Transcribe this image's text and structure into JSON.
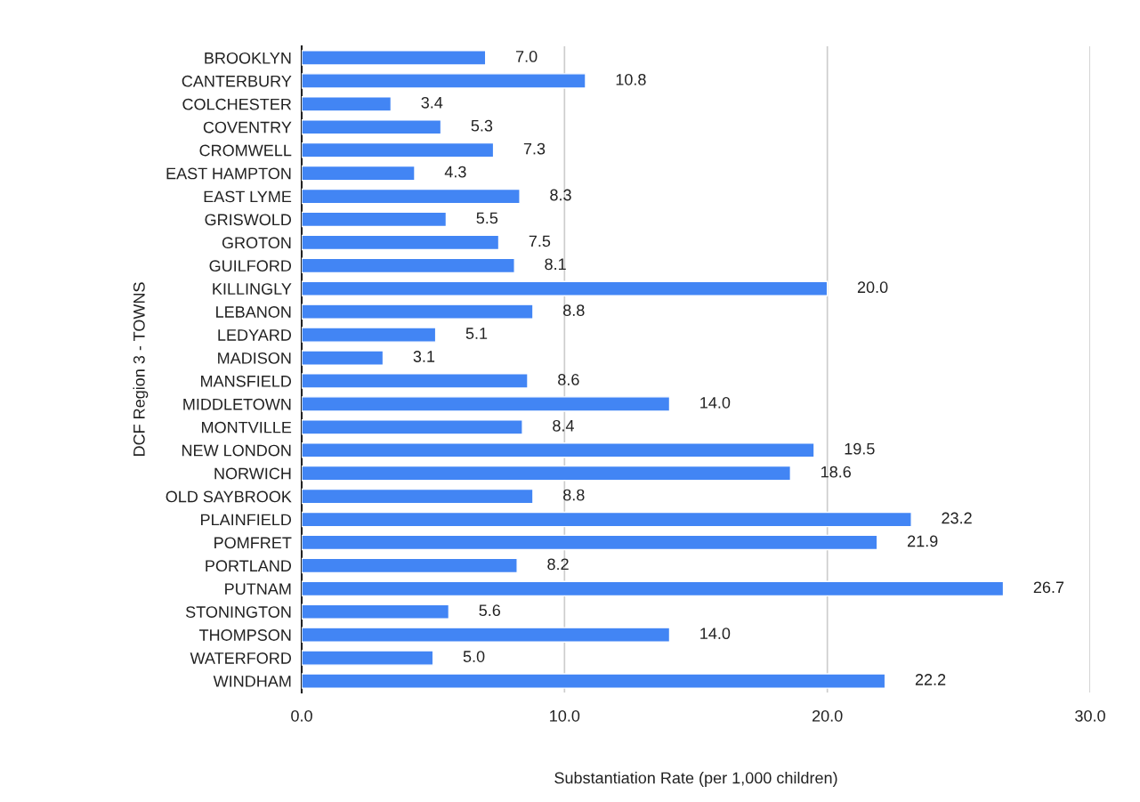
{
  "chart_data": {
    "type": "bar",
    "orientation": "horizontal",
    "ylabel": "DCF Region 3 - TOWNS",
    "xlabel": "Substantiation Rate (per 1,000 children)",
    "categories": [
      "BROOKLYN",
      "CANTERBURY",
      "COLCHESTER",
      "COVENTRY",
      "CROMWELL",
      "EAST HAMPTON",
      "EAST LYME",
      "GRISWOLD",
      "GROTON",
      "GUILFORD",
      "KILLINGLY",
      "LEBANON",
      "LEDYARD",
      "MADISON",
      "MANSFIELD",
      "MIDDLETOWN",
      "MONTVILLE",
      "NEW LONDON",
      "NORWICH",
      "OLD SAYBROOK",
      "PLAINFIELD",
      "POMFRET",
      "PORTLAND",
      "PUTNAM",
      "STONINGTON",
      "THOMPSON",
      "WATERFORD",
      "WINDHAM"
    ],
    "values": [
      7.0,
      10.8,
      3.4,
      5.3,
      7.3,
      4.3,
      8.3,
      5.5,
      7.5,
      8.1,
      20.0,
      8.8,
      5.1,
      3.1,
      8.6,
      14.0,
      8.4,
      19.5,
      18.6,
      8.8,
      23.2,
      21.9,
      8.2,
      26.7,
      5.6,
      14.0,
      5.0,
      22.2
    ],
    "value_labels": [
      "7.0",
      "10.8",
      "3.4",
      "5.3",
      "7.3",
      "4.3",
      "8.3",
      "5.5",
      "7.5",
      "8.1",
      "20.0",
      "8.8",
      "5.1",
      "3.1",
      "8.6",
      "14.0",
      "8.4",
      "19.5",
      "18.6",
      "8.8",
      "23.2",
      "21.9",
      "8.2",
      "26.7",
      "5.6",
      "14.0",
      "5.0",
      "22.2"
    ],
    "color": "#4285f4",
    "xlim": [
      0,
      30
    ],
    "xticks": [
      {
        "value": 0,
        "label": "0.0"
      },
      {
        "value": 10,
        "label": "10.0"
      },
      {
        "value": 20,
        "label": "20.0"
      },
      {
        "value": 30,
        "label": "30.0"
      }
    ],
    "grid": "x",
    "legend": false
  }
}
